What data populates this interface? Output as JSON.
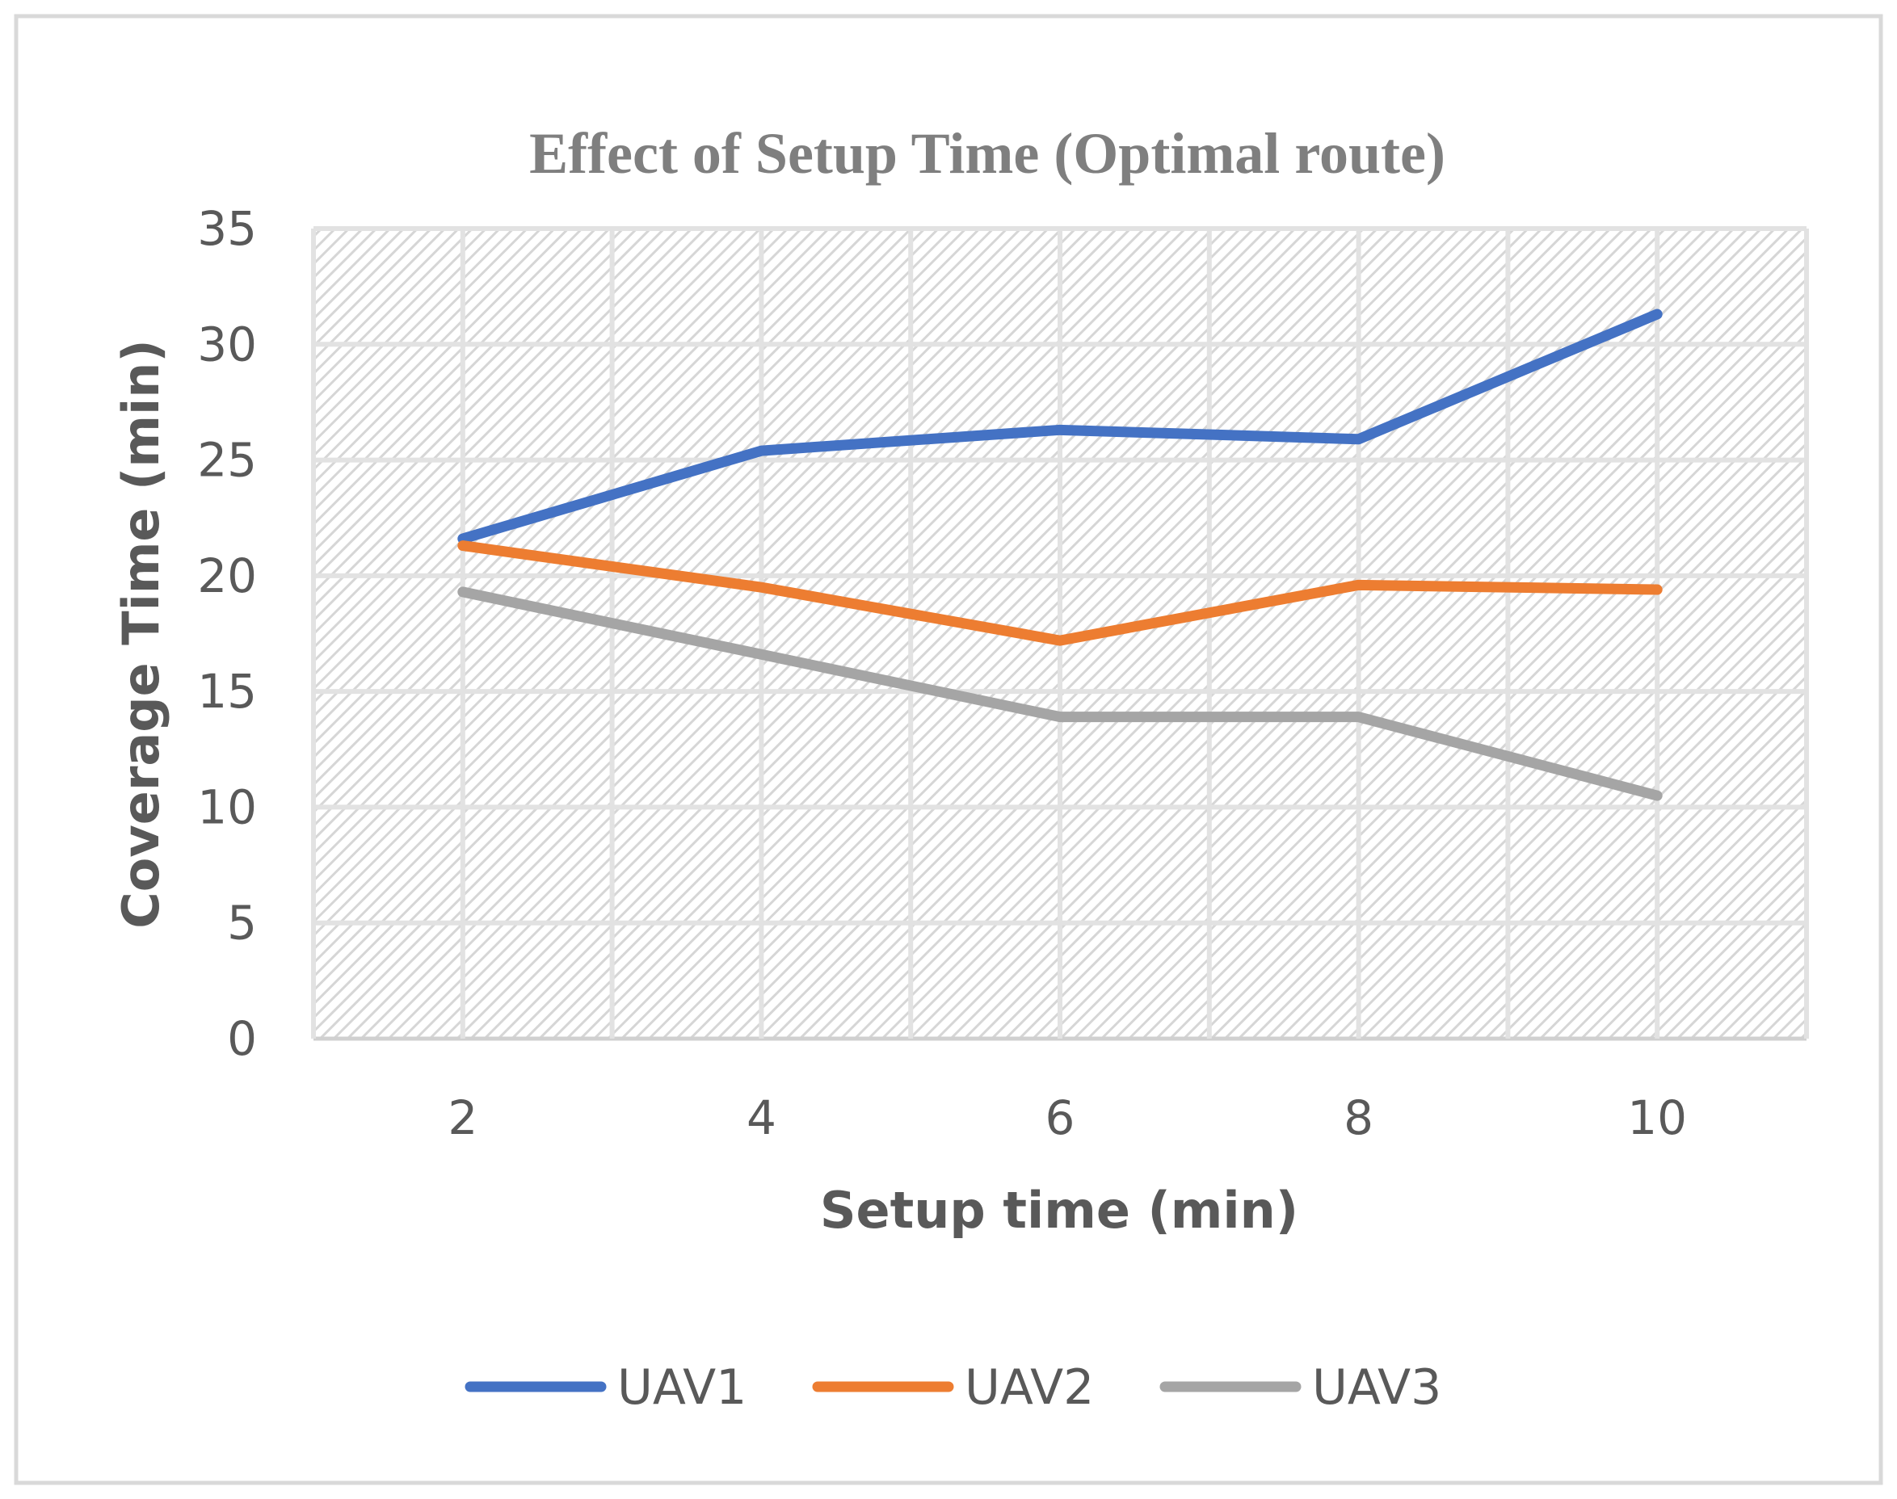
{
  "chart_data": {
    "type": "line",
    "title": "Effect of Setup Time (Optimal route)",
    "xlabel": "Setup time (min)",
    "ylabel": "Coverage Time (min)",
    "categories": [
      "2",
      "4",
      "6",
      "8",
      "10"
    ],
    "x": [
      2,
      4,
      6,
      8,
      10
    ],
    "ylim": [
      0,
      35
    ],
    "yticks": [
      0,
      5,
      10,
      15,
      20,
      25,
      30,
      35
    ],
    "grid": true,
    "legend_position": "bottom",
    "series": [
      {
        "name": "UAV1",
        "color": "#4472c4",
        "values": [
          21.6,
          25.4,
          26.3,
          25.9,
          31.3
        ]
      },
      {
        "name": "UAV2",
        "color": "#ed7d31",
        "values": [
          21.3,
          19.5,
          17.2,
          19.6,
          19.4
        ]
      },
      {
        "name": "UAV3",
        "color": "#a5a5a5",
        "values": [
          19.3,
          16.6,
          13.9,
          13.9,
          10.5
        ]
      }
    ]
  }
}
